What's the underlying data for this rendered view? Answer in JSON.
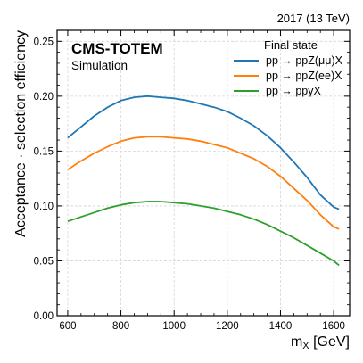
{
  "top_right_label": "2017 (13 TeV)",
  "experiment_label": "CMS-TOTEM",
  "experiment_sublabel": "Simulation",
  "legend_title": "Final state",
  "chart_data": {
    "type": "line",
    "xlabel": "m_X [GeV]",
    "ylabel": "Acceptance · selection efficiency",
    "xlim": [
      560,
      1660
    ],
    "ylim": [
      0,
      0.26
    ],
    "x_ticks": [
      600,
      800,
      1000,
      1200,
      1400,
      1600
    ],
    "y_ticks": [
      0.0,
      0.05,
      0.1,
      0.15,
      0.2,
      0.25
    ],
    "grid": true,
    "legend_position": "top-right",
    "x": [
      600,
      650,
      700,
      750,
      800,
      850,
      900,
      950,
      1000,
      1050,
      1100,
      1150,
      1200,
      1250,
      1300,
      1350,
      1400,
      1450,
      1500,
      1550,
      1600,
      1620
    ],
    "series": [
      {
        "name": "pp → ppZ(μμ)X",
        "color": "#1f77b4",
        "values": [
          0.162,
          0.172,
          0.182,
          0.19,
          0.196,
          0.199,
          0.2,
          0.199,
          0.198,
          0.196,
          0.193,
          0.19,
          0.186,
          0.18,
          0.173,
          0.164,
          0.153,
          0.14,
          0.126,
          0.11,
          0.099,
          0.097
        ]
      },
      {
        "name": "pp → ppZ(ee)X",
        "color": "#ff7f0e",
        "values": [
          0.133,
          0.141,
          0.148,
          0.154,
          0.159,
          0.162,
          0.163,
          0.163,
          0.162,
          0.161,
          0.159,
          0.156,
          0.153,
          0.148,
          0.143,
          0.136,
          0.127,
          0.116,
          0.105,
          0.092,
          0.081,
          0.079
        ]
      },
      {
        "name": "pp → ppγX",
        "color": "#2ca02c",
        "values": [
          0.086,
          0.09,
          0.094,
          0.098,
          0.101,
          0.103,
          0.104,
          0.104,
          0.103,
          0.102,
          0.1,
          0.098,
          0.095,
          0.092,
          0.088,
          0.083,
          0.077,
          0.071,
          0.064,
          0.057,
          0.05,
          0.046
        ]
      }
    ]
  }
}
